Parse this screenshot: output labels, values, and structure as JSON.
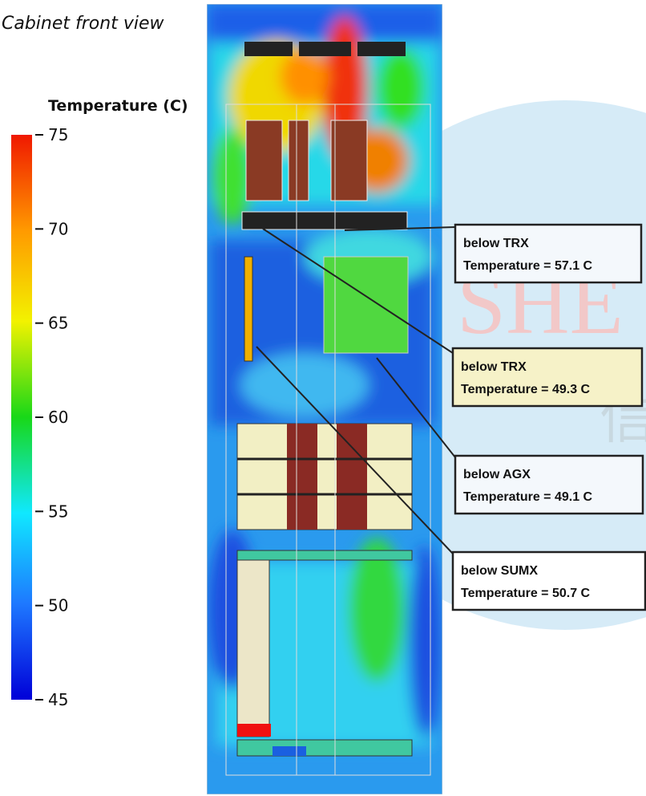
{
  "title": "Cabinet front view",
  "watermark": "SHE",
  "colorbar": {
    "title": "Temperature (C)",
    "ticks": [
      75,
      70,
      65,
      60,
      55,
      50,
      45
    ]
  },
  "probes": [
    {
      "label": "below TRX",
      "reading": "Temperature = 57.1 C"
    },
    {
      "label": "below TRX",
      "reading": "Temperature = 49.3 C"
    },
    {
      "label": "below AGX",
      "reading": "Temperature = 49.1 C"
    },
    {
      "label": "below SUMX",
      "reading": "Temperature = 50.7 C"
    }
  ]
}
